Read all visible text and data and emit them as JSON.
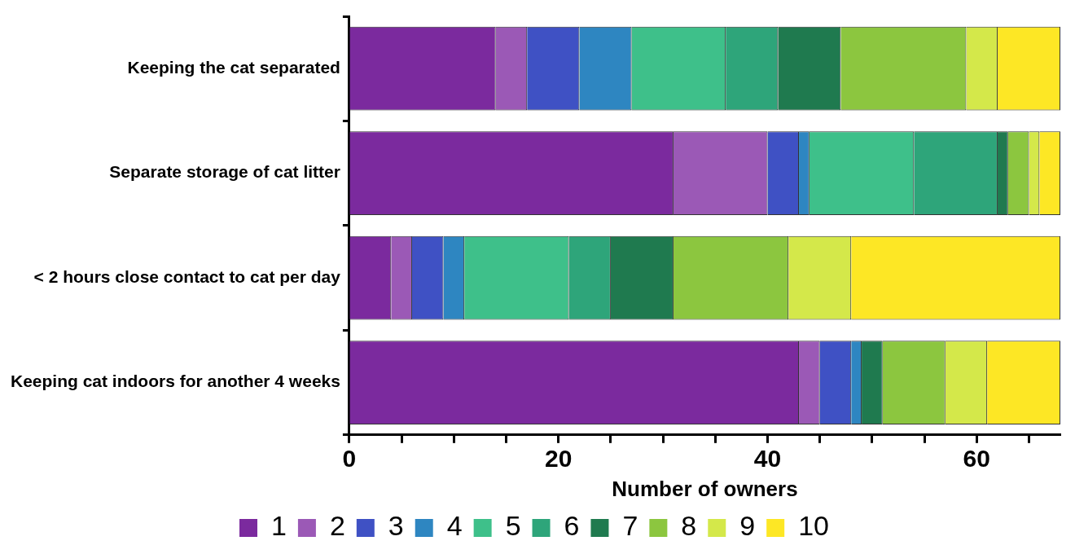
{
  "chart_data": {
    "type": "bar",
    "orientation": "horizontal",
    "stacked": true,
    "xlabel": "Number of owners",
    "categories": [
      "Keeping the cat separated",
      "Separate storage of cat litter",
      "< 2 hours close contact to cat per day",
      "Keeping cat indoors for another 4 weeks"
    ],
    "series": [
      {
        "name": "1",
        "color": "#7b2a9e",
        "values": [
          14,
          31,
          4,
          43
        ]
      },
      {
        "name": "2",
        "color": "#9b59b6",
        "values": [
          3,
          9,
          2,
          2
        ]
      },
      {
        "name": "3",
        "color": "#3f51c4",
        "values": [
          5,
          3,
          3,
          3
        ]
      },
      {
        "name": "4",
        "color": "#2e86c1",
        "values": [
          5,
          1,
          2,
          1
        ]
      },
      {
        "name": "5",
        "color": "#3ec08a",
        "values": [
          9,
          10,
          10,
          0
        ]
      },
      {
        "name": "6",
        "color": "#2ea57a",
        "values": [
          5,
          8,
          4,
          0
        ]
      },
      {
        "name": "7",
        "color": "#1f7a4f",
        "values": [
          6,
          1,
          6,
          2
        ]
      },
      {
        "name": "8",
        "color": "#8cc63f",
        "values": [
          12,
          2,
          11,
          6
        ]
      },
      {
        "name": "9",
        "color": "#d4e84a",
        "values": [
          3,
          1,
          6,
          4
        ]
      },
      {
        "name": "10",
        "color": "#fde725",
        "values": [
          6,
          2,
          20,
          7
        ]
      }
    ],
    "xlim": [
      0,
      68
    ],
    "xticks": [
      0,
      {
        "value": 5,
        "label": null
      },
      {
        "value": 10,
        "label": null
      },
      {
        "value": 15,
        "label": null
      },
      20,
      {
        "value": 25,
        "label": null
      },
      {
        "value": 30,
        "label": null
      },
      {
        "value": 35,
        "label": null
      },
      40,
      {
        "value": 45,
        "label": null
      },
      {
        "value": 50,
        "label": null
      },
      {
        "value": 55,
        "label": null
      },
      60,
      {
        "value": 65,
        "label": null
      }
    ],
    "grid": false,
    "legend": "bottom"
  }
}
